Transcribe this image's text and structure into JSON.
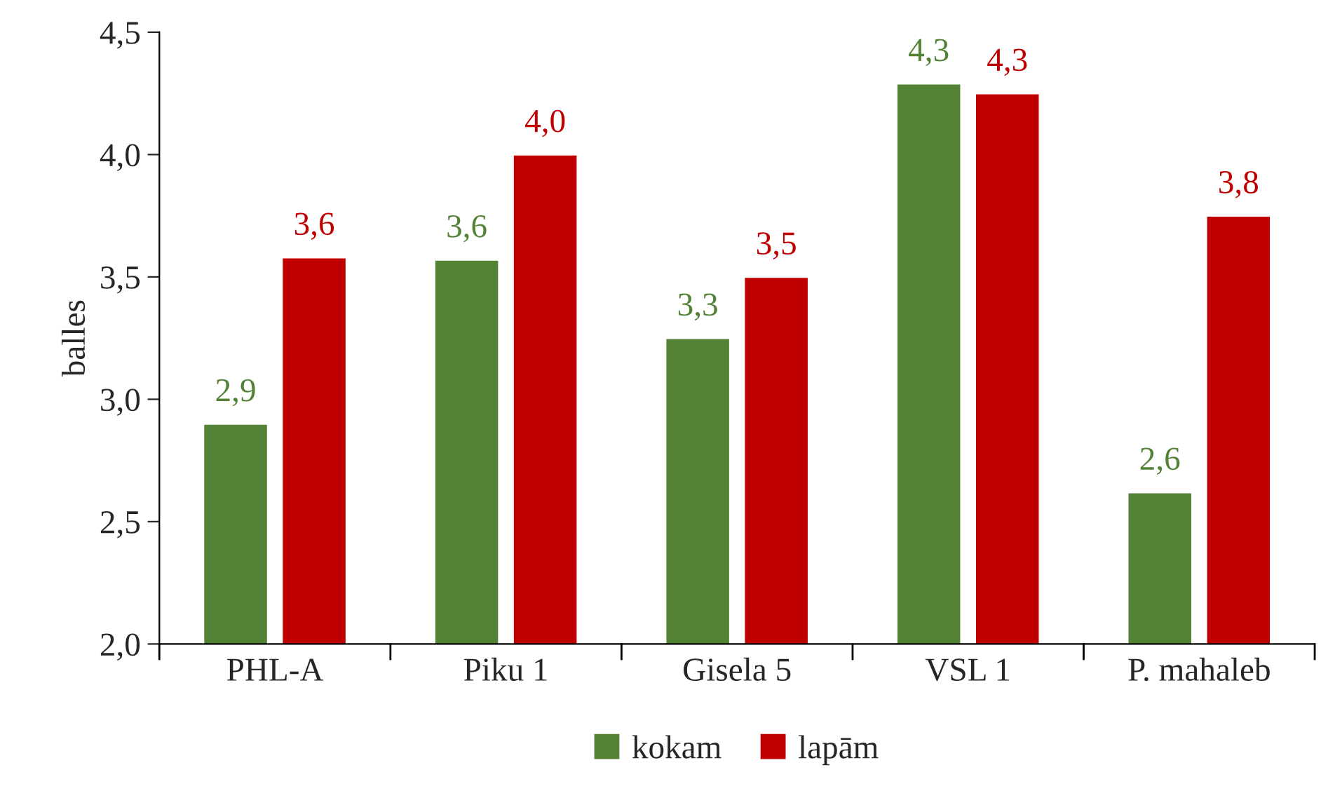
{
  "chart_data": {
    "type": "bar",
    "ylabel": "balles",
    "categories": [
      "PHL-A",
      "Piku 1",
      "Gisela 5",
      "VSL 1",
      "P. mahaleb"
    ],
    "series": [
      {
        "name": "kokam",
        "color": "#548235",
        "values": [
          2.9,
          3.57,
          3.25,
          4.29,
          2.62
        ],
        "value_labels": [
          "2,9",
          "3,6",
          "3,3",
          "4,3",
          "2,6"
        ]
      },
      {
        "name": "lapām",
        "color": "#c00000",
        "values": [
          3.58,
          4.0,
          3.5,
          4.25,
          3.75
        ],
        "value_labels": [
          "3,6",
          "4,0",
          "3,5",
          "4,3",
          "3,8"
        ]
      }
    ],
    "ylim": [
      2.0,
      4.5
    ],
    "yticks": [
      {
        "value": 2.0,
        "label": "2,0"
      },
      {
        "value": 2.5,
        "label": "2,5"
      },
      {
        "value": 3.0,
        "label": "3,0"
      },
      {
        "value": 3.5,
        "label": "3,5"
      },
      {
        "value": 4.0,
        "label": "4,0"
      },
      {
        "value": 4.5,
        "label": "4,5"
      }
    ],
    "legend": "bottom"
  }
}
